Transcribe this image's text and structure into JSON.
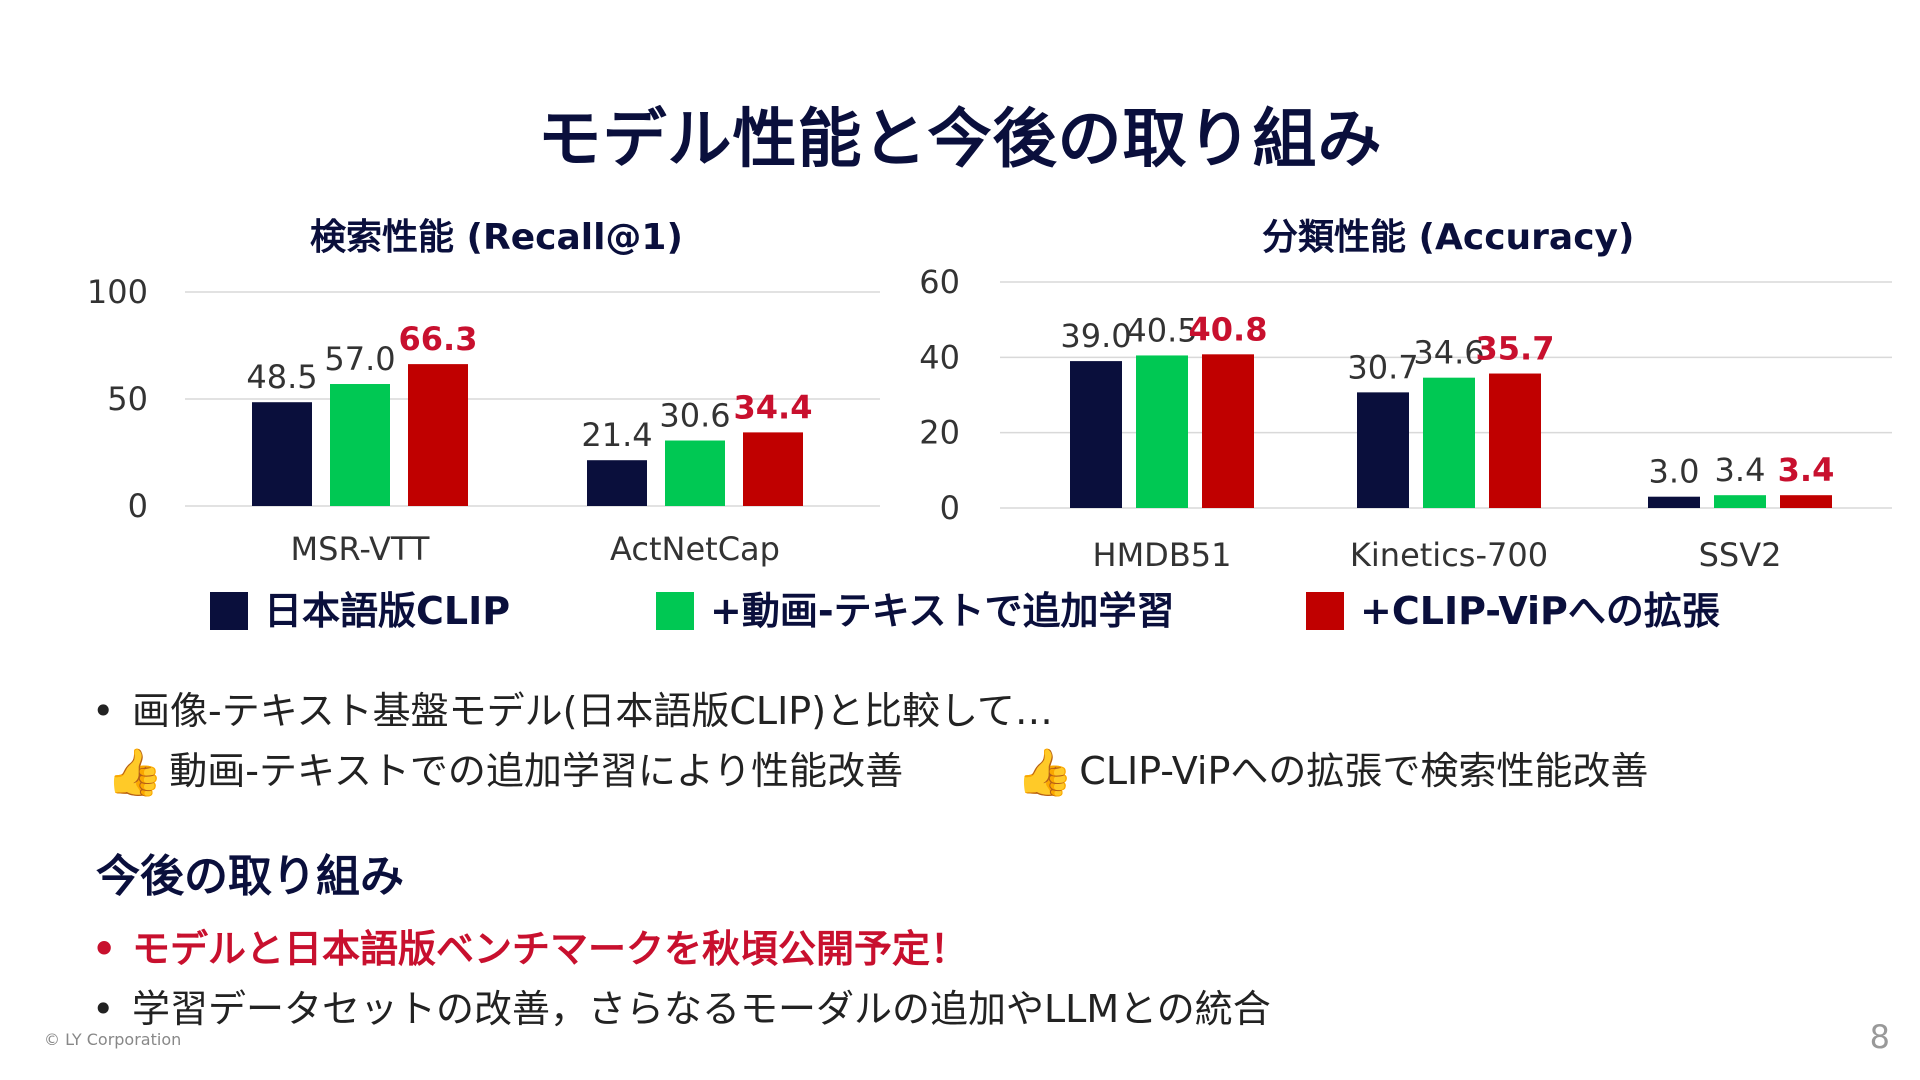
{
  "slide": {
    "title": "モデル性能と今後の取り組み",
    "page_number": "8",
    "footer": "© LY Corporation"
  },
  "legend": {
    "items": [
      {
        "label": "日本語版CLIP",
        "color": "#0a0f3c"
      },
      {
        "label": "+動画-テキストで追加学習",
        "color": "#00c853"
      },
      {
        "label": "+CLIP-ViPへの拡張",
        "color": "#c00000"
      }
    ]
  },
  "chart_data": [
    {
      "type": "bar",
      "title": "検索性能 (Recall@1)",
      "categories": [
        "MSR-VTT",
        "ActNetCap"
      ],
      "series": [
        {
          "name": "日本語版CLIP",
          "values": [
            48.5,
            21.4
          ],
          "labels": [
            "48.5",
            "21.4"
          ]
        },
        {
          "name": "+動画-テキストで追加学習",
          "values": [
            57.0,
            30.6
          ],
          "labels": [
            "57.0",
            "30.6"
          ]
        },
        {
          "name": "+CLIP-ViPへの拡張",
          "values": [
            66.3,
            34.4
          ],
          "labels": [
            "66.3",
            "34.4"
          ]
        }
      ],
      "yticks": [
        "0",
        "50",
        "100"
      ],
      "ylim": [
        0,
        100
      ],
      "grid": true
    },
    {
      "type": "bar",
      "title": "分類性能 (Accuracy)",
      "categories": [
        "HMDB51",
        "Kinetics-700",
        "SSV2"
      ],
      "series": [
        {
          "name": "日本語版CLIP",
          "values": [
            39.0,
            30.7,
            3.0
          ],
          "labels": [
            "39.0",
            "30.7",
            "3.0"
          ]
        },
        {
          "name": "+動画-テキストで追加学習",
          "values": [
            40.5,
            34.6,
            3.4
          ],
          "labels": [
            "40.5",
            "34.6",
            "3.4"
          ]
        },
        {
          "name": "+CLIP-ViPへの拡張",
          "values": [
            40.8,
            35.7,
            3.4
          ],
          "labels": [
            "40.8",
            "35.7",
            "3.4"
          ]
        }
      ],
      "yticks": [
        "0",
        "20",
        "40",
        "60"
      ],
      "ylim": [
        0,
        60
      ],
      "grid": true
    }
  ],
  "comparison": {
    "intro": "画像-テキスト基盤モデル(日本語版CLIP)と比較して…",
    "points": [
      {
        "icon": "thumbs-up-icon",
        "text": "動画-テキストでの追加学習により性能改善"
      },
      {
        "icon": "thumbs-up-icon",
        "text": "CLIP-ViPへの拡張で検索性能改善"
      }
    ]
  },
  "future": {
    "title": "今後の取り組み",
    "items": [
      {
        "text": "モデルと日本語版ベンチマークを秋頃公開予定！",
        "highlight": true
      },
      {
        "text": "学習データセットの改善，さらなるモーダルの追加やLLMとの統合",
        "highlight": false
      }
    ]
  },
  "bullet_char": "•",
  "thumb_glyph": "👍"
}
